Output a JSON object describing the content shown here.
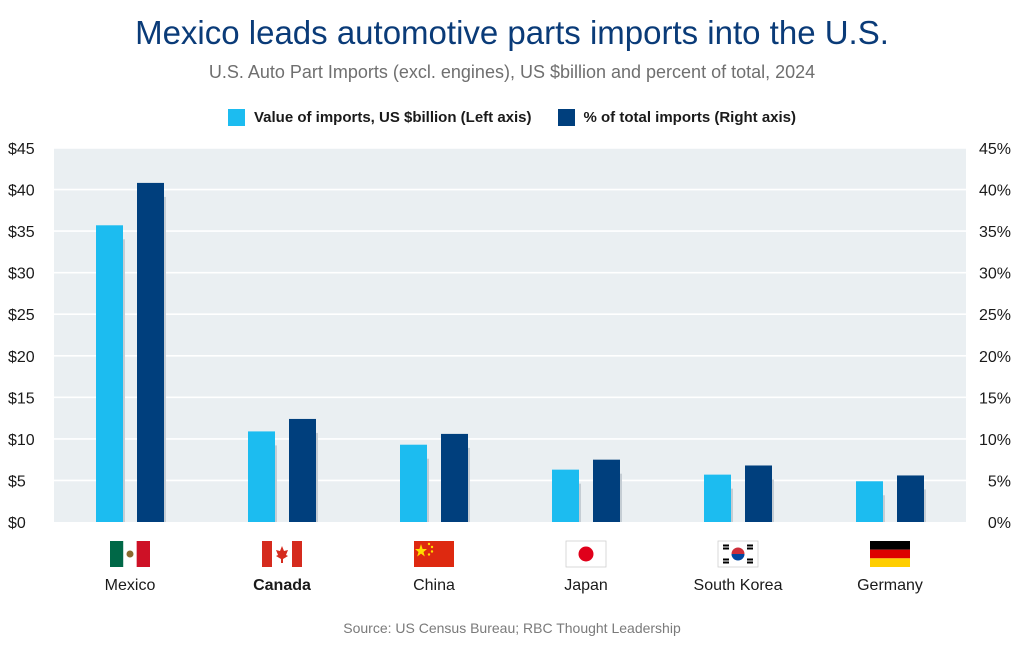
{
  "chart_data": {
    "type": "bar",
    "title": "Mexico leads automotive parts imports into the U.S.",
    "subtitle": "U.S. Auto Part Imports (excl. engines), US $billion and percent of total, 2024",
    "categories": [
      "Mexico",
      "Canada",
      "China",
      "Japan",
      "South Korea",
      "Germany"
    ],
    "highlight_category": "Canada",
    "series": [
      {
        "name": "Value of imports, US $billion (Left axis)",
        "axis": "left",
        "color": "#1cbcf0",
        "values": [
          35.7,
          10.9,
          9.3,
          6.3,
          5.7,
          4.9
        ]
      },
      {
        "name": "% of total imports (Right axis)",
        "axis": "right",
        "color": "#003f7d",
        "values": [
          40.8,
          12.4,
          10.6,
          7.5,
          6.8,
          5.6
        ]
      }
    ],
    "y_left": {
      "ylim": [
        0,
        45
      ],
      "ticks": [
        "$0",
        "$5",
        "$10",
        "$15",
        "$20",
        "$25",
        "$30",
        "$35",
        "$40",
        "$45"
      ]
    },
    "y_right": {
      "ylim": [
        0,
        45
      ],
      "ticks": [
        "0%",
        "5%",
        "10%",
        "15%",
        "20%",
        "25%",
        "30%",
        "35%",
        "40%",
        "45%"
      ]
    },
    "grid": true,
    "legend_position": "top-center",
    "flags": [
      "mexico-flag-icon",
      "canada-flag-icon",
      "china-flag-icon",
      "japan-flag-icon",
      "south-korea-flag-icon",
      "germany-flag-icon"
    ],
    "plot_background": "#eaeff2",
    "source": "Source: US Census Bureau; RBC Thought Leadership"
  }
}
